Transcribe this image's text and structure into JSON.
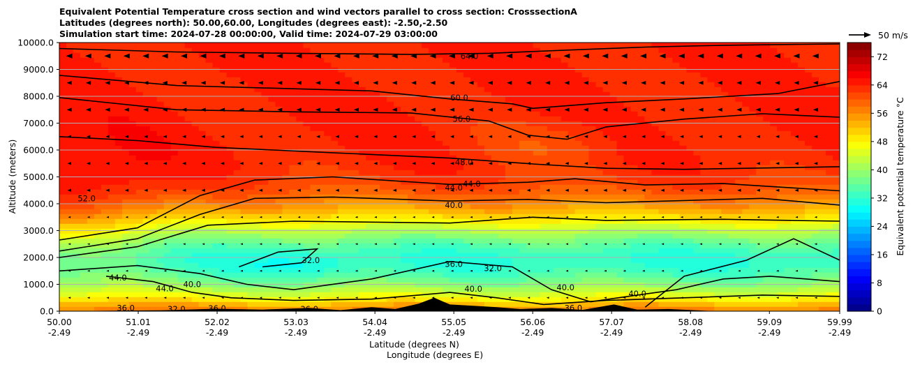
{
  "title_lines": [
    "Equivalent Potential Temperature cross section and wind vectors parallel to cross section: CrosssectionA",
    "Latitudes (degrees north): 50.00,60.00, Longitudes (degrees east): -2.50,-2.50",
    "Simulation start time: 2024-07-28 00:00:00, Valid time: 2024-07-29 03:00:00"
  ],
  "chart_data": {
    "type": "heatmap",
    "subtype": "filled contour cross section with wind vectors",
    "title": "Equivalent Potential Temperature cross section and wind vectors parallel to cross section: CrosssectionA",
    "ylabel": "Altitude (meters)",
    "xlabel_1": "Latitude (degrees N)",
    "xlabel_2": "Longitude (degrees E)",
    "xlim": [
      50.0,
      59.99
    ],
    "ylim": [
      0,
      10000
    ],
    "grid": "horizontal",
    "x_ticks": [
      {
        "lat": "50.00",
        "lon": "-2.49",
        "value": 50.0
      },
      {
        "lat": "51.01",
        "lon": "-2.49",
        "value": 51.01
      },
      {
        "lat": "52.02",
        "lon": "-2.49",
        "value": 52.02
      },
      {
        "lat": "53.03",
        "lon": "-2.49",
        "value": 53.03
      },
      {
        "lat": "54.04",
        "lon": "-2.49",
        "value": 54.04
      },
      {
        "lat": "55.05",
        "lon": "-2.49",
        "value": 55.05
      },
      {
        "lat": "56.06",
        "lon": "-2.49",
        "value": 56.06
      },
      {
        "lat": "57.07",
        "lon": "-2.49",
        "value": 57.07
      },
      {
        "lat": "58.08",
        "lon": "-2.49",
        "value": 58.08
      },
      {
        "lat": "59.09",
        "lon": "-2.49",
        "value": 59.09
      },
      {
        "lat": "59.99",
        "lon": "-2.49",
        "value": 59.99
      }
    ],
    "y_ticks": [
      "0.0",
      "1000.0",
      "2000.0",
      "3000.0",
      "4000.0",
      "5000.0",
      "6000.0",
      "7000.0",
      "8000.0",
      "9000.0",
      "10000.0"
    ],
    "colorbar": {
      "label": "Equivalent potential temperature $^\\circ$C",
      "label_display": "Equivalent potential temperature °C",
      "range": [
        0,
        76
      ],
      "ticks": [
        "0",
        "8",
        "16",
        "24",
        "32",
        "40",
        "48",
        "56",
        "64",
        "72"
      ]
    },
    "quiver_key": "50 m/s",
    "contour_levels_labeled": [
      "64.0",
      "60.0",
      "56.0",
      "52.0",
      "48.0",
      "44.0",
      "40.0",
      "36.0",
      "32.0"
    ],
    "contour_labels": [
      {
        "text": "64.0",
        "lat": 55.25,
        "alt": 9500
      },
      {
        "text": "60.0",
        "lat": 55.12,
        "alt": 7950
      },
      {
        "text": "56.0",
        "lat": 55.15,
        "alt": 7150
      },
      {
        "text": "48.0",
        "lat": 55.18,
        "alt": 5540
      },
      {
        "text": "44.0",
        "lat": 55.05,
        "alt": 4600
      },
      {
        "text": "44.0",
        "lat": 55.28,
        "alt": 4740
      },
      {
        "text": "40.0",
        "lat": 55.05,
        "alt": 3950
      },
      {
        "text": "52.0",
        "lat": 50.35,
        "alt": 4200
      },
      {
        "text": "36.0",
        "lat": 55.05,
        "alt": 1750
      },
      {
        "text": "32.0",
        "lat": 53.22,
        "alt": 1900
      },
      {
        "text": "32.0",
        "lat": 55.55,
        "alt": 1600
      },
      {
        "text": "44.0",
        "lat": 50.75,
        "alt": 1250
      },
      {
        "text": "44.0",
        "lat": 51.35,
        "alt": 850
      },
      {
        "text": "40.0",
        "lat": 51.7,
        "alt": 1000
      },
      {
        "text": "40.0",
        "lat": 55.3,
        "alt": 830
      },
      {
        "text": "40.0",
        "lat": 56.48,
        "alt": 880
      },
      {
        "text": "40.0",
        "lat": 57.4,
        "alt": 650
      },
      {
        "text": "36.0",
        "lat": 56.58,
        "alt": 120
      },
      {
        "text": "36.0",
        "lat": 50.85,
        "alt": 120
      },
      {
        "text": "32.0",
        "lat": 51.5,
        "alt": 80
      },
      {
        "text": "36.0",
        "lat": 52.02,
        "alt": 100
      },
      {
        "text": "36.0",
        "lat": 53.2,
        "alt": 80
      }
    ]
  }
}
